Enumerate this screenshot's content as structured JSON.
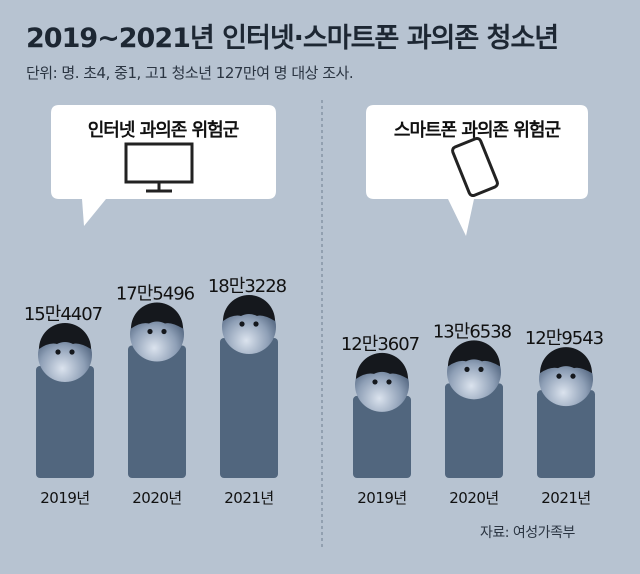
{
  "title": "2019∼2021년 인터넷·스마트폰 과의존 청소년",
  "subtitle": "단위: 명. 초4, 중1, 고1 청소년 127만여 명 대상 조사.",
  "source": "자료: 여성가족부",
  "colors": {
    "background": "#b7c3d1",
    "bar": "#51667e",
    "head_light": "#dbe3ee",
    "head_dark": "#3b4f6a",
    "hair": "#15181d",
    "callout": "#ffffff"
  },
  "chart_data": [
    {
      "type": "bar",
      "title": "인터넷 과의존 위험군",
      "icon": "monitor-icon",
      "categories": [
        "2019년",
        "2020년",
        "2021년"
      ],
      "values": [
        154407,
        175496,
        183228
      ],
      "value_labels": [
        "15만4407",
        "17만5496",
        "18만3228"
      ]
    },
    {
      "type": "bar",
      "title": "스마트폰 과의존 위험군",
      "icon": "smartphone-icon",
      "categories": [
        "2019년",
        "2020년",
        "2021년"
      ],
      "values": [
        123607,
        136538,
        129543
      ],
      "value_labels": [
        "12만3607",
        "13만6538",
        "12만9543"
      ]
    }
  ]
}
